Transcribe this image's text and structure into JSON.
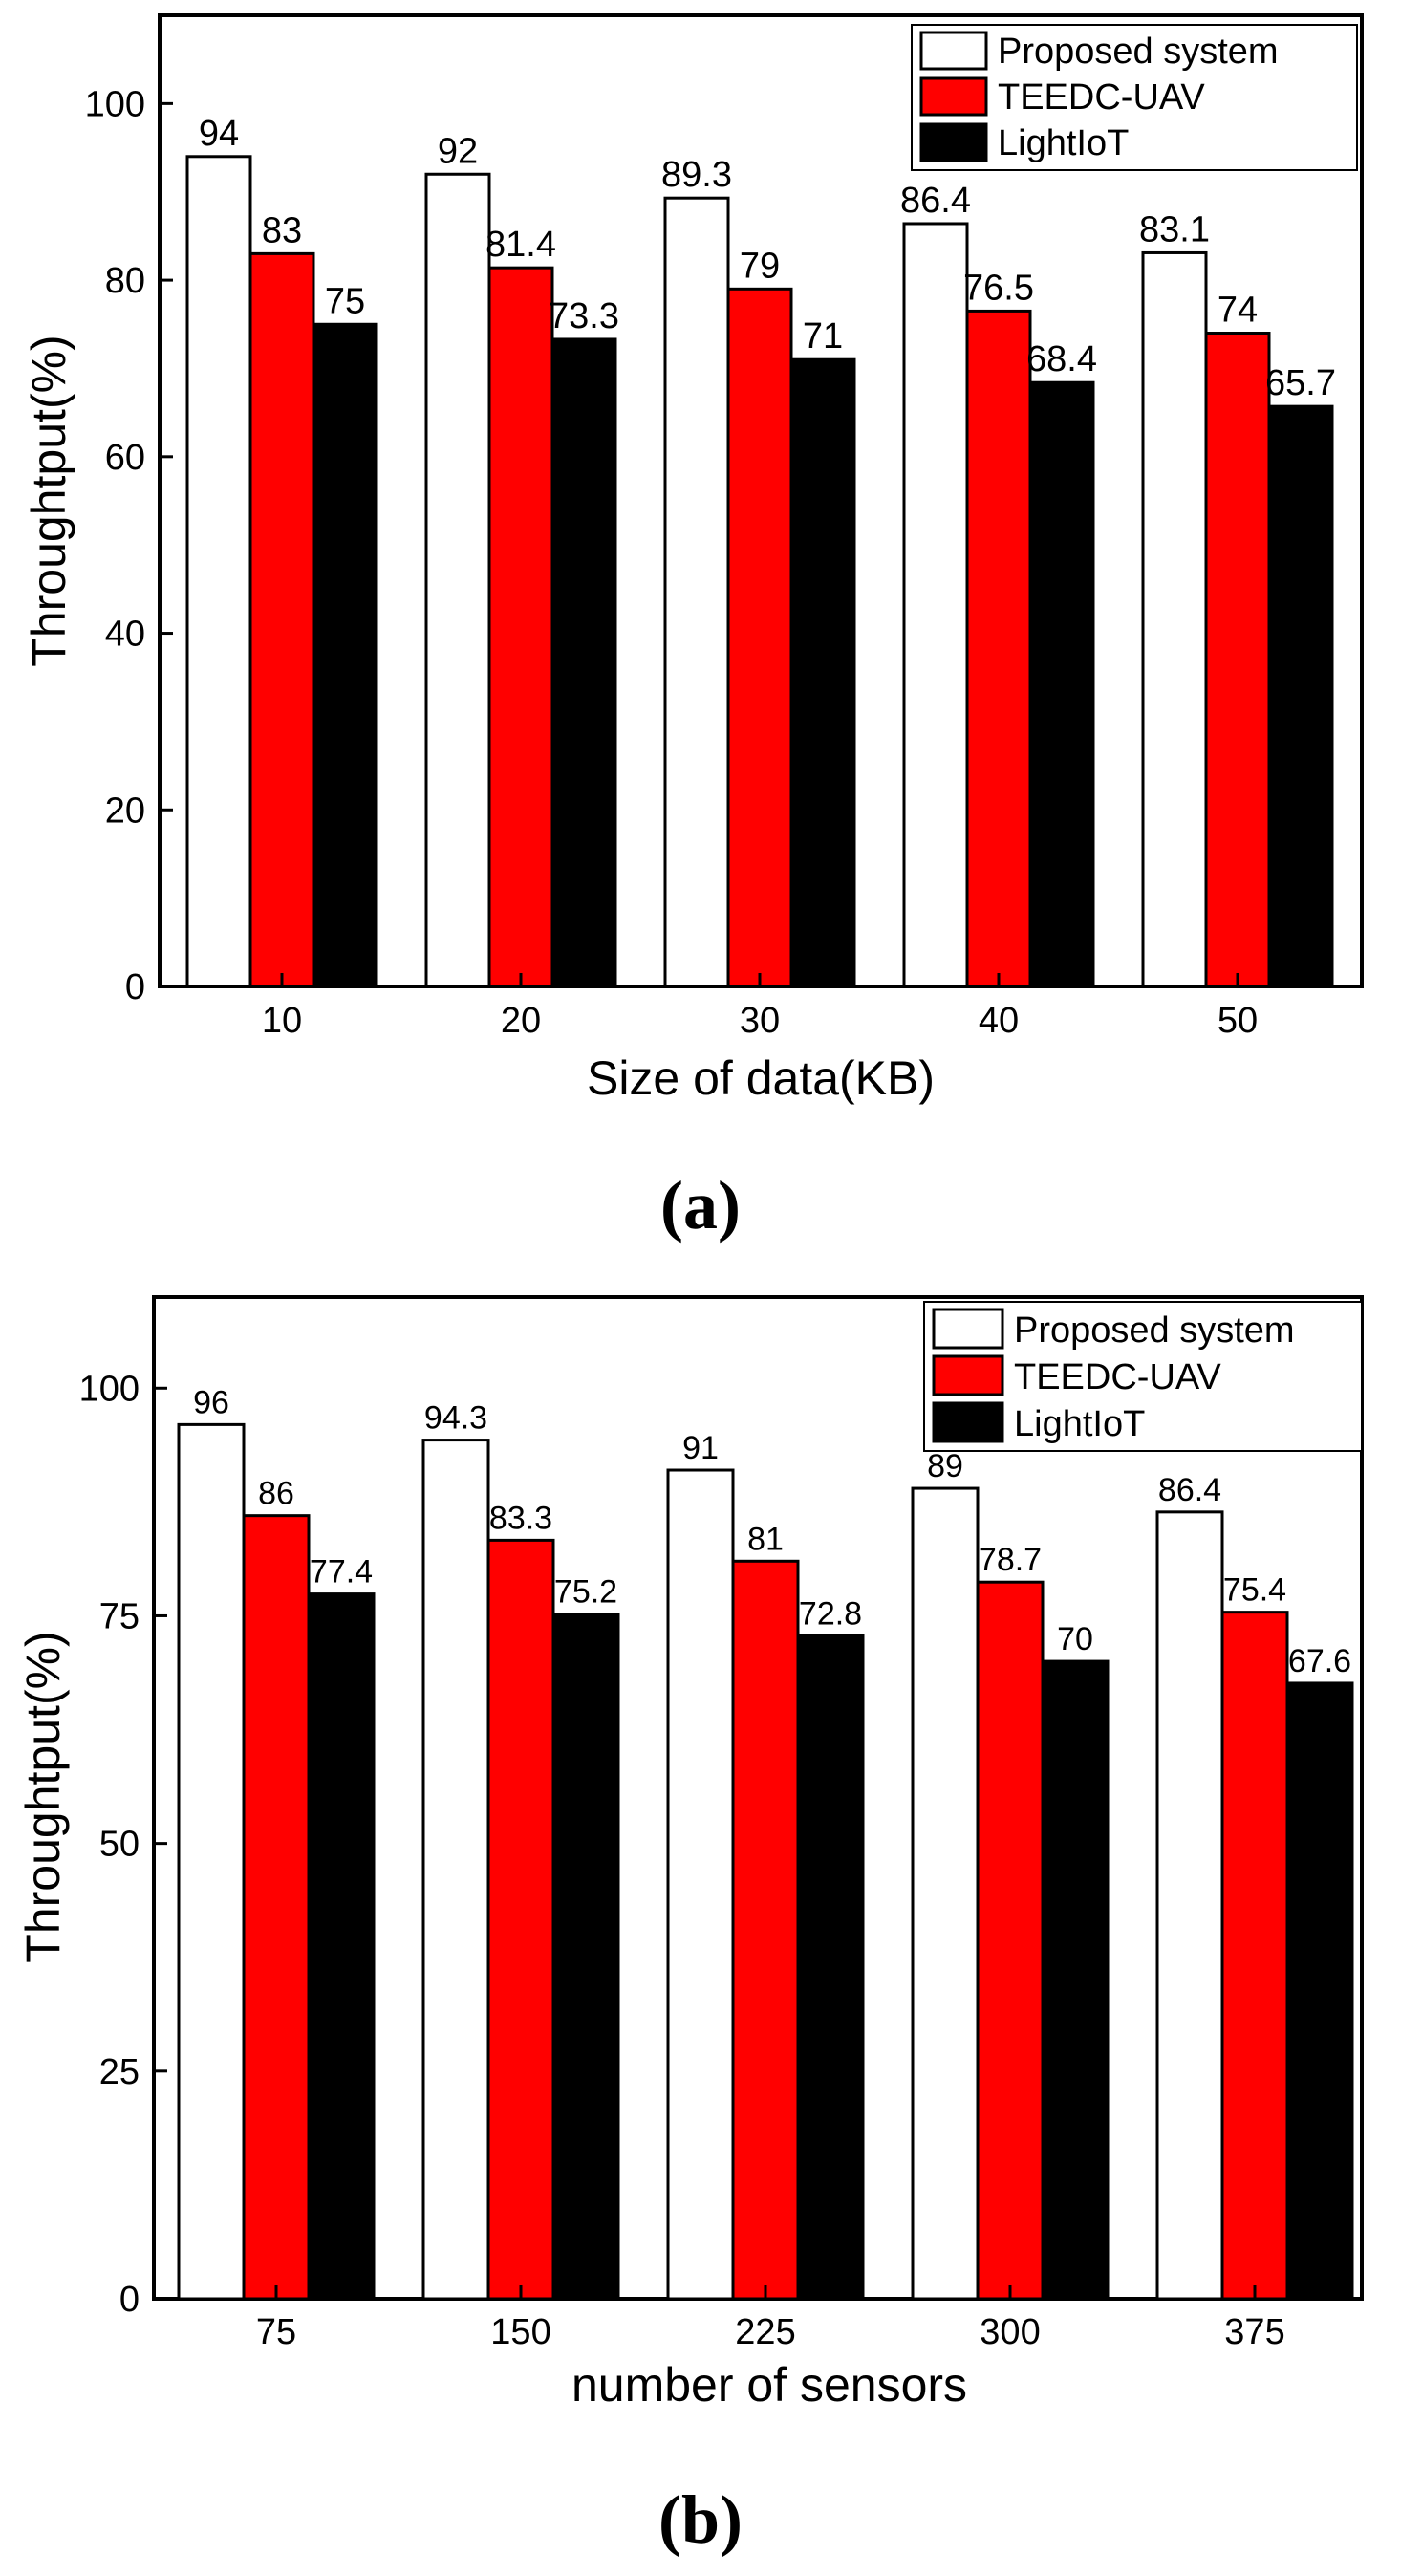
{
  "chart_data": [
    {
      "type": "bar",
      "panel_label": "(a)",
      "title": "",
      "xlabel": "Size of data(KB)",
      "ylabel": "Throughtput(%)",
      "ylim": [
        0,
        110
      ],
      "yticks": [
        0,
        20,
        40,
        60,
        80,
        100
      ],
      "categories": [
        "10",
        "20",
        "30",
        "40",
        "50"
      ],
      "legend_position": "top-right",
      "series": [
        {
          "name": "Proposed system",
          "color": "#ffffff",
          "values": [
            94,
            92,
            89.3,
            86.4,
            83.1
          ]
        },
        {
          "name": "TEEDC-UAV",
          "color": "#ff0000",
          "values": [
            83,
            81.4,
            79,
            76.5,
            74
          ]
        },
        {
          "name": "LightIoT",
          "color": "#000000",
          "values": [
            75,
            73.3,
            71,
            68.4,
            65.7
          ]
        }
      ]
    },
    {
      "type": "bar",
      "panel_label": "(b)",
      "title": "",
      "xlabel": "number of sensors",
      "ylabel": "Throughtput(%)",
      "ylim": [
        0,
        110
      ],
      "yticks": [
        0,
        25,
        50,
        75,
        100
      ],
      "categories": [
        "75",
        "150",
        "225",
        "300",
        "375"
      ],
      "legend_position": "top-right",
      "series": [
        {
          "name": "Proposed system",
          "color": "#ffffff",
          "values": [
            96,
            94.3,
            91,
            89,
            86.4
          ]
        },
        {
          "name": "TEEDC-UAV",
          "color": "#ff0000",
          "values": [
            86,
            83.3,
            81,
            78.7,
            75.4
          ]
        },
        {
          "name": "LightIoT",
          "color": "#000000",
          "values": [
            77.4,
            75.2,
            72.8,
            70,
            67.6
          ]
        }
      ]
    }
  ]
}
